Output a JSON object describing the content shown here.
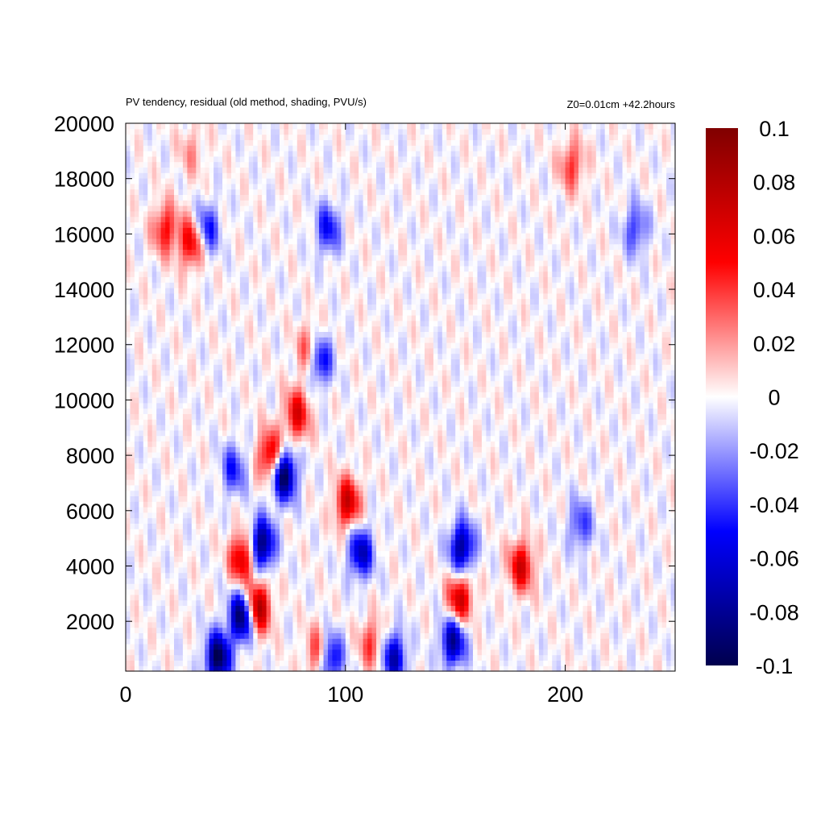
{
  "chart_data": {
    "type": "heatmap",
    "title": "PV tendency, residual (old method, shading, PVU/s)",
    "subtitle": "Z0=0.01cm   +42.2hours",
    "xlabel": "",
    "ylabel": "",
    "xlim": [
      0,
      250
    ],
    "ylim": [
      200,
      20000
    ],
    "x_ticks": [
      "0",
      "100",
      "200"
    ],
    "y_ticks": [
      "2000",
      "4000",
      "6000",
      "8000",
      "10000",
      "12000",
      "14000",
      "16000",
      "18000",
      "20000"
    ],
    "colorbar": {
      "range": [
        -0.1,
        0.1
      ],
      "ticks": [
        "0.1",
        "0.08",
        "0.06",
        "0.04",
        "0.02",
        "0",
        "-0.02",
        "-0.04",
        "-0.06",
        "-0.08",
        "-0.1"
      ],
      "colors": [
        "#00004d",
        "#0000ff",
        "#ffffff",
        "#ff0000",
        "#800000"
      ]
    },
    "features": [
      {
        "x": 42,
        "y": 700,
        "value": -0.1
      },
      {
        "x": 53,
        "y": 2200,
        "value": -0.1
      },
      {
        "x": 60,
        "y": 2500,
        "value": 0.09
      },
      {
        "x": 53,
        "y": 4300,
        "value": 0.07
      },
      {
        "x": 62,
        "y": 4800,
        "value": -0.09
      },
      {
        "x": 72,
        "y": 7300,
        "value": -0.1
      },
      {
        "x": 66,
        "y": 8000,
        "value": 0.07
      },
      {
        "x": 78,
        "y": 9500,
        "value": 0.06
      },
      {
        "x": 49,
        "y": 7500,
        "value": -0.045
      },
      {
        "x": 88,
        "y": 11500,
        "value": -0.07
      },
      {
        "x": 84,
        "y": 11800,
        "value": 0.05
      },
      {
        "x": 101,
        "y": 6300,
        "value": 0.07
      },
      {
        "x": 107,
        "y": 4500,
        "value": -0.07
      },
      {
        "x": 153,
        "y": 4700,
        "value": -0.08
      },
      {
        "x": 152,
        "y": 2800,
        "value": 0.07
      },
      {
        "x": 149,
        "y": 1300,
        "value": -0.08
      },
      {
        "x": 180,
        "y": 4000,
        "value": 0.065
      },
      {
        "x": 207,
        "y": 5500,
        "value": -0.04
      },
      {
        "x": 88,
        "y": 900,
        "value": 0.05
      },
      {
        "x": 93,
        "y": 700,
        "value": -0.07
      },
      {
        "x": 122,
        "y": 700,
        "value": -0.07
      },
      {
        "x": 112,
        "y": 1200,
        "value": 0.04
      },
      {
        "x": 30,
        "y": 15700,
        "value": 0.06
      },
      {
        "x": 37,
        "y": 16200,
        "value": -0.05
      },
      {
        "x": 18,
        "y": 16200,
        "value": 0.05
      },
      {
        "x": 92,
        "y": 16200,
        "value": -0.05
      },
      {
        "x": 232,
        "y": 16200,
        "value": -0.04
      },
      {
        "x": 30,
        "y": 19000,
        "value": 0.02
      },
      {
        "x": 203,
        "y": 18500,
        "value": 0.04
      }
    ]
  }
}
